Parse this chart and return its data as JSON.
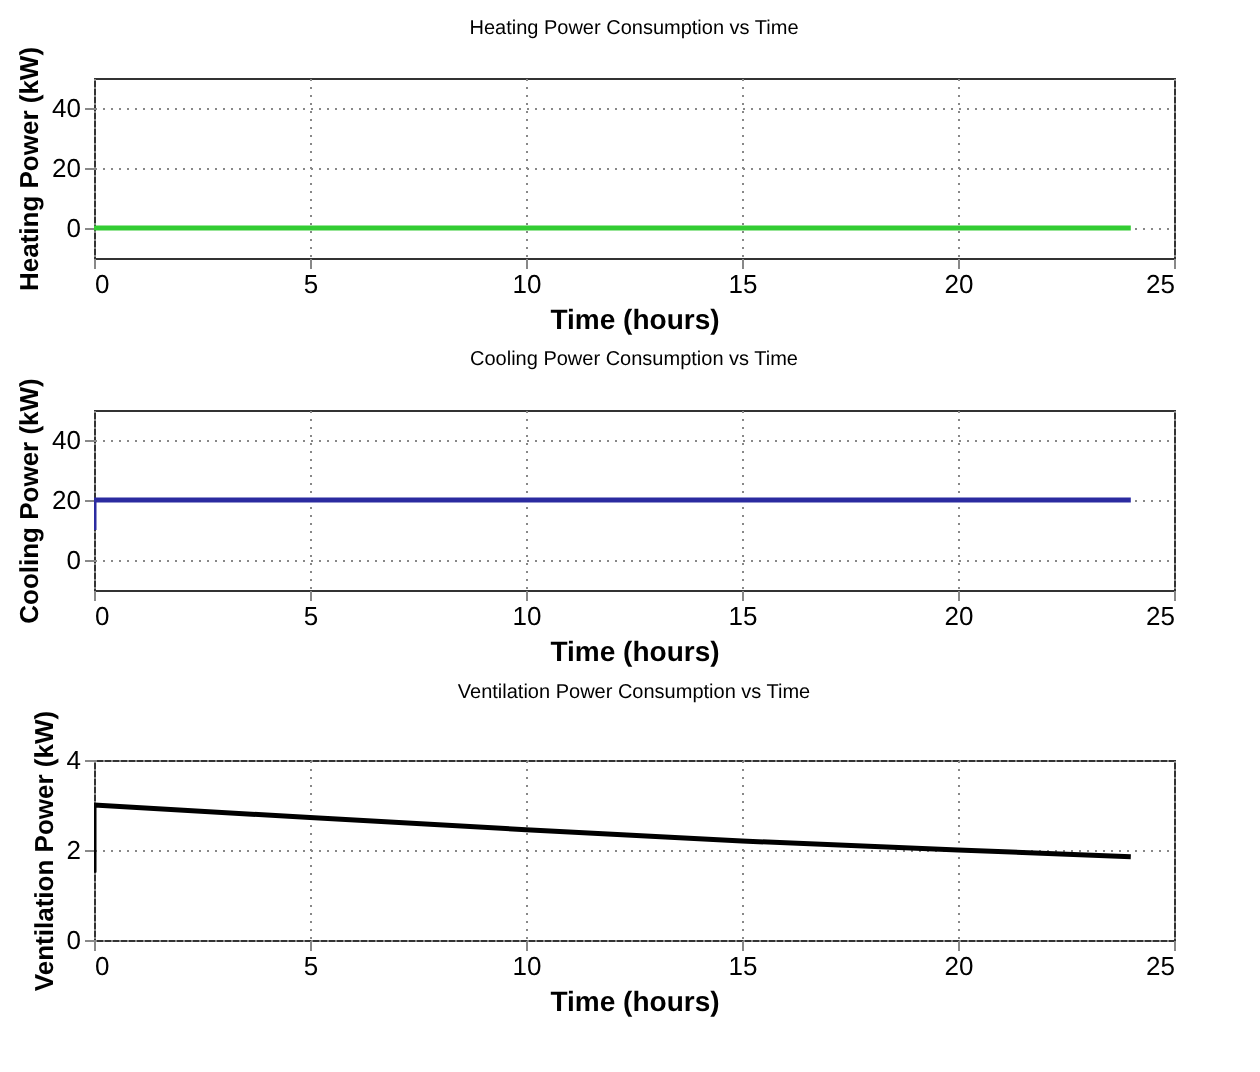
{
  "chart_data": [
    {
      "type": "line",
      "title": "Heating Power Consumption vs Time",
      "xlabel": "Time (hours)",
      "ylabel": "Heating Power (kW)",
      "xlim": [
        0,
        25
      ],
      "xticks": [
        0,
        5,
        10,
        15,
        20,
        25
      ],
      "ylim": [
        -10,
        50
      ],
      "yticks": [
        0,
        20,
        40
      ],
      "grid": true,
      "series": [
        {
          "color": "#33cc33",
          "x": [
            0,
            24
          ],
          "values": [
            0,
            0
          ]
        }
      ]
    },
    {
      "type": "line",
      "title": "Cooling Power Consumption vs Time",
      "xlabel": "Time (hours)",
      "ylabel": "Cooling Power (kW)",
      "xlim": [
        0,
        25
      ],
      "xticks": [
        0,
        5,
        10,
        15,
        20,
        25
      ],
      "ylim": [
        -10,
        50
      ],
      "yticks": [
        0,
        20,
        40
      ],
      "grid": true,
      "series": [
        {
          "color": "#2b2ba0",
          "x": [
            0,
            0,
            24
          ],
          "values": [
            10,
            20,
            20
          ]
        }
      ]
    },
    {
      "type": "line",
      "title": "Ventilation Power Consumption vs Time",
      "xlabel": "Time (hours)",
      "ylabel": "Ventilation Power (kW)",
      "xlim": [
        0,
        25
      ],
      "xticks": [
        0,
        5,
        10,
        15,
        20,
        25
      ],
      "ylim": [
        0,
        4
      ],
      "yticks": [
        0,
        2,
        4
      ],
      "grid": true,
      "series": [
        {
          "color": "#000000",
          "x": [
            0,
            0,
            5,
            10,
            15,
            20,
            24
          ],
          "values": [
            1.5,
            3.0,
            2.72,
            2.45,
            2.2,
            2.0,
            1.85
          ]
        }
      ]
    }
  ]
}
